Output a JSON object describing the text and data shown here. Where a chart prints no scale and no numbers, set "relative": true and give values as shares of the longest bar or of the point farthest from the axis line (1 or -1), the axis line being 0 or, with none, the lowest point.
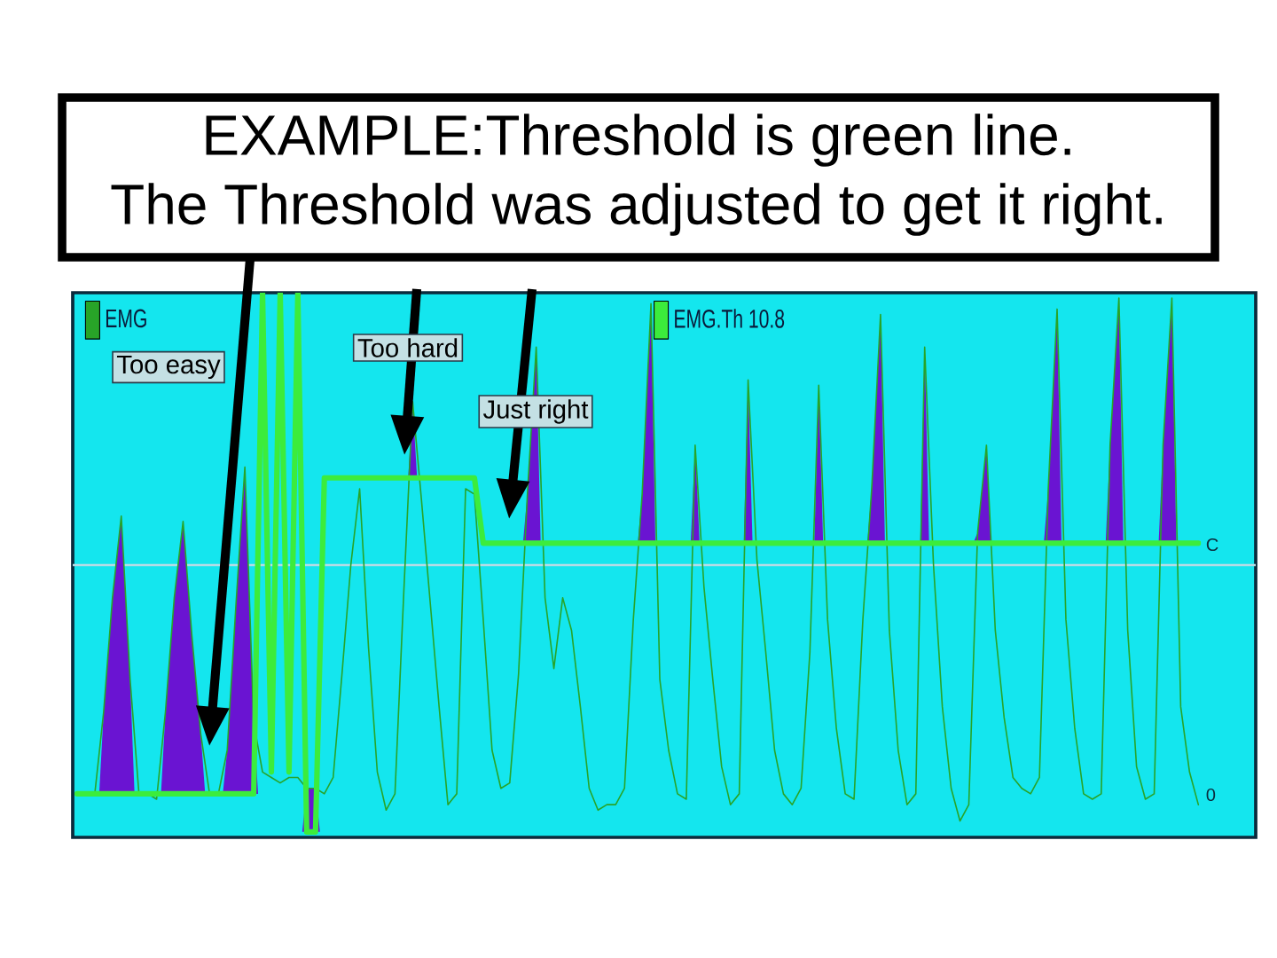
{
  "chart_data": {
    "type": "line",
    "title": "EXAMPLE:Threshold is green line.",
    "subtitle": "The Threshold was adjusted to get it right.",
    "relative": true,
    "legend": "top",
    "categories": [
      null,
      null,
      null,
      null,
      null,
      null,
      null,
      null,
      null,
      null,
      null,
      null,
      null,
      null,
      null,
      null,
      null,
      null,
      null,
      null,
      null,
      null,
      null,
      null,
      null,
      null,
      null,
      null,
      null,
      null,
      null,
      null,
      null,
      null,
      null,
      null,
      null,
      null,
      null,
      null,
      null,
      null,
      null,
      null,
      null,
      null,
      null,
      null,
      null,
      null,
      null,
      null,
      null,
      null,
      null,
      null,
      null,
      null,
      null,
      null,
      null,
      null,
      null,
      null,
      null,
      null,
      null,
      null,
      null,
      null,
      null,
      null,
      null,
      null,
      null,
      null,
      null,
      null,
      null,
      null,
      null,
      null,
      null,
      null,
      null,
      null,
      null,
      null,
      null,
      null,
      null,
      null,
      null,
      null,
      null,
      null,
      null,
      null,
      null,
      null,
      null,
      null,
      null,
      null,
      null,
      null,
      null,
      null,
      null,
      null,
      null,
      null,
      null,
      null,
      null,
      null,
      null,
      null,
      null,
      null,
      null,
      null,
      null,
      null,
      null,
      null,
      null,
      null,
      null,
      null,
      null,
      null,
      null,
      null
    ],
    "series": [
      {
        "name": "EMG",
        "color": "#28a428",
        "values": [
          0.08,
          0.08,
          0.08,
          0.23,
          0.44,
          0.59,
          0.29,
          0.08,
          0.08,
          0.07,
          0.23,
          0.44,
          0.58,
          0.37,
          0.19,
          0.08,
          0.08,
          0.16,
          0.43,
          0.68,
          0.21,
          0.12,
          0.11,
          0.1,
          0.11,
          0.11,
          0.09,
          0.09,
          0.08,
          0.11,
          0.3,
          0.5,
          0.64,
          0.35,
          0.12,
          0.05,
          0.08,
          0.45,
          0.8,
          0.62,
          0.43,
          0.24,
          0.06,
          0.08,
          0.64,
          0.63,
          0.4,
          0.16,
          0.09,
          0.1,
          0.3,
          0.63,
          0.9,
          0.44,
          0.31,
          0.44,
          0.38,
          0.24,
          0.09,
          0.05,
          0.06,
          0.06,
          0.09,
          0.4,
          0.63,
          0.98,
          0.29,
          0.16,
          0.08,
          0.07,
          0.72,
          0.46,
          0.29,
          0.13,
          0.06,
          0.08,
          0.84,
          0.51,
          0.34,
          0.16,
          0.08,
          0.06,
          0.09,
          0.34,
          0.83,
          0.4,
          0.2,
          0.08,
          0.07,
          0.4,
          0.64,
          0.96,
          0.38,
          0.16,
          0.06,
          0.08,
          0.9,
          0.5,
          0.24,
          0.09,
          0.03,
          0.06,
          0.56,
          0.72,
          0.38,
          0.22,
          0.11,
          0.09,
          0.08,
          0.11,
          0.64,
          0.97,
          0.4,
          0.2,
          0.08,
          0.07,
          0.08,
          0.72,
          0.99,
          0.38,
          0.13,
          0.07,
          0.08,
          0.72,
          0.99,
          0.24,
          0.12,
          0.06,
          null,
          null,
          null,
          null,
          null,
          null
        ],
        "lower": [
          null,
          null,
          null,
          0.08,
          0.08,
          0.08,
          0.08,
          null,
          null,
          null,
          0.08,
          0.08,
          0.08,
          0.08,
          0.08,
          null,
          null,
          0.08,
          0.08,
          0.08,
          0.08,
          null,
          null,
          null,
          null,
          null,
          0.01,
          0.01,
          null,
          null,
          null,
          null,
          null,
          null,
          null,
          null,
          null,
          null,
          0.66,
          null,
          null,
          null,
          null,
          null,
          null,
          null,
          null,
          null,
          null,
          null,
          null,
          0.54,
          0.54,
          null,
          null,
          null,
          null,
          null,
          null,
          null,
          null,
          null,
          null,
          null,
          0.54,
          0.54,
          null,
          null,
          null,
          null,
          0.54,
          null,
          null,
          null,
          null,
          null,
          0.54,
          null,
          null,
          null,
          null,
          null,
          null,
          null,
          0.54,
          null,
          null,
          null,
          null,
          null,
          0.54,
          0.54,
          null,
          null,
          null,
          null,
          0.54,
          null,
          null,
          null,
          null,
          null,
          0.54,
          0.54,
          null,
          null,
          null,
          null,
          null,
          null,
          0.54,
          0.54,
          null,
          null,
          null,
          null,
          null,
          0.54,
          0.54,
          null,
          null,
          null,
          null,
          0.54,
          0.54,
          null,
          null,
          null,
          null,
          null,
          null,
          null,
          null,
          null
        ],
        "upper": [
          null,
          null,
          null,
          0.23,
          0.44,
          0.59,
          0.29,
          null,
          null,
          null,
          0.23,
          0.44,
          0.58,
          0.37,
          0.19,
          null,
          null,
          0.16,
          0.43,
          0.68,
          0.21,
          null,
          null,
          null,
          null,
          null,
          0.09,
          0.09,
          null,
          null,
          null,
          null,
          null,
          null,
          null,
          null,
          null,
          null,
          0.8,
          null,
          null,
          null,
          null,
          null,
          null,
          null,
          null,
          null,
          null,
          null,
          null,
          0.63,
          0.9,
          null,
          null,
          null,
          null,
          null,
          null,
          null,
          null,
          null,
          null,
          null,
          0.63,
          0.98,
          null,
          null,
          null,
          null,
          0.72,
          null,
          null,
          null,
          null,
          null,
          0.84,
          null,
          null,
          null,
          null,
          null,
          null,
          null,
          0.83,
          null,
          null,
          null,
          null,
          null,
          0.64,
          0.96,
          null,
          null,
          null,
          null,
          0.9,
          null,
          null,
          null,
          null,
          null,
          0.56,
          0.72,
          null,
          null,
          null,
          null,
          null,
          null,
          0.64,
          0.97,
          null,
          null,
          null,
          null,
          null,
          0.72,
          0.99,
          null,
          null,
          null,
          null,
          0.72,
          0.99,
          null,
          null,
          null,
          null,
          null,
          null,
          null,
          null,
          null
        ]
      },
      {
        "name": "EMG.Th 10.8",
        "color": "#3cec3c",
        "values": [
          0.08,
          0.08,
          0.08,
          0.08,
          0.08,
          0.08,
          0.08,
          0.08,
          0.08,
          0.08,
          0.08,
          0.08,
          0.08,
          0.08,
          0.08,
          0.08,
          0.08,
          0.08,
          0.08,
          0.08,
          0.08,
          1.0,
          0.12,
          1.0,
          0.12,
          1.0,
          0.01,
          0.01,
          0.66,
          0.66,
          0.66,
          0.66,
          0.66,
          0.66,
          0.66,
          0.66,
          0.66,
          0.66,
          0.66,
          0.66,
          0.66,
          0.66,
          0.66,
          0.66,
          0.66,
          0.66,
          0.54,
          0.54,
          0.54,
          0.54,
          0.54,
          0.54,
          0.54,
          0.54,
          0.54,
          0.54,
          0.54,
          0.54,
          0.54,
          0.54,
          0.54,
          0.54,
          0.54,
          0.54,
          0.54,
          0.54,
          0.54,
          0.54,
          0.54,
          0.54,
          0.54,
          0.54,
          0.54,
          0.54,
          0.54,
          0.54,
          0.54,
          0.54,
          0.54,
          0.54,
          0.54,
          0.54,
          0.54,
          0.54,
          0.54,
          0.54,
          0.54,
          0.54,
          0.54,
          0.54,
          0.54,
          0.54,
          0.54,
          0.54,
          0.54,
          0.54,
          0.54,
          0.54,
          0.54,
          0.54,
          0.54,
          0.54,
          0.54,
          0.54,
          0.54,
          0.54,
          0.54,
          0.54,
          0.54,
          0.54,
          0.54,
          0.54,
          0.54,
          0.54,
          0.54,
          0.54,
          0.54,
          0.54,
          0.54,
          0.54,
          0.54,
          0.54,
          0.54,
          0.54,
          0.54,
          0.54,
          0.54,
          0.54,
          null,
          null,
          null,
          null,
          null,
          null
        ]
      }
    ],
    "ref_lines": [
      {
        "axis": "y",
        "value": 0.5,
        "color": "#b4dce6"
      }
    ],
    "annotations": [
      "Too easy",
      "Too hard",
      "Just right",
      "C",
      "0"
    ]
  }
}
